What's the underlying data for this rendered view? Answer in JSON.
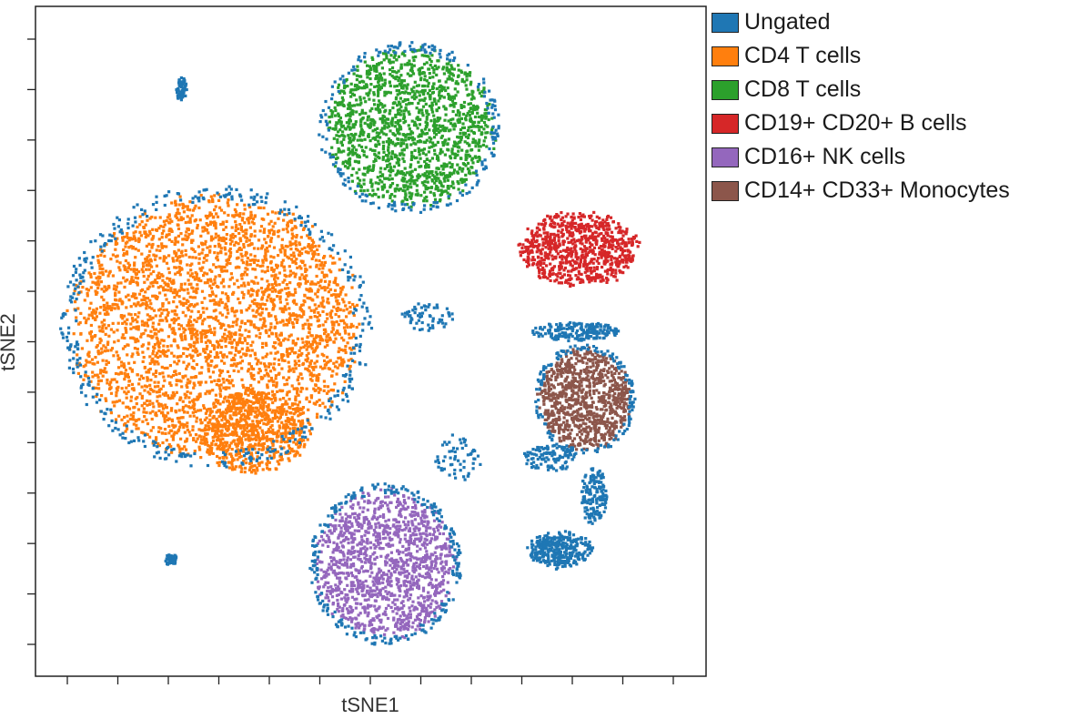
{
  "chart_data": {
    "type": "scatter",
    "xlabel": "tSNE1",
    "ylabel": "tSNE2",
    "x_ticks": 13,
    "y_ticks": 13,
    "xlim": [
      -6.9,
      6.9
    ],
    "ylim": [
      -6.9,
      6.9
    ],
    "legend": "right",
    "series": [
      {
        "name": "Ungated",
        "color": "#1f77b4"
      },
      {
        "name": "CD4 T cells",
        "color": "#ff7f0e"
      },
      {
        "name": "CD8 T cells",
        "color": "#2ca02c"
      },
      {
        "name": "CD19+ CD20+ B cells",
        "color": "#d62728"
      },
      {
        "name": "CD16+ NK cells",
        "color": "#9467bd"
      },
      {
        "name": "CD14+ CD33+ Monocytes",
        "color": "#8c564b"
      }
    ],
    "clusters": [
      {
        "series": "CD4 T cells",
        "shape": "ellipse",
        "center": [
          -3.2,
          0.3
        ],
        "radius": [
          3.1,
          2.8
        ],
        "points": 3200
      },
      {
        "series": "CD4 T cells",
        "shape": "ellipse",
        "center": [
          -2.4,
          -1.9
        ],
        "radius": [
          1.2,
          0.9
        ],
        "points": 600
      },
      {
        "series": "CD8 T cells",
        "shape": "ellipse",
        "center": [
          0.8,
          4.4
        ],
        "radius": [
          1.8,
          1.7
        ],
        "points": 1500
      },
      {
        "series": "CD19+ CD20+ B cells",
        "shape": "ellipse",
        "center": [
          4.3,
          1.9
        ],
        "radius": [
          1.3,
          0.8
        ],
        "points": 800
      },
      {
        "series": "CD14+ CD33+ Monocytes",
        "shape": "ellipse",
        "center": [
          4.4,
          -1.2
        ],
        "radius": [
          1.0,
          1.1
        ],
        "points": 900
      },
      {
        "series": "CD16+ NK cells",
        "shape": "ellipse",
        "center": [
          0.3,
          -4.6
        ],
        "radius": [
          1.5,
          1.6
        ],
        "points": 1300
      },
      {
        "series": "Ungated",
        "shape": "ellipse",
        "center": [
          3.9,
          -4.3
        ],
        "radius": [
          0.7,
          0.4
        ],
        "points": 320
      },
      {
        "series": "Ungated",
        "shape": "ellipse",
        "center": [
          4.6,
          -3.2
        ],
        "radius": [
          0.3,
          0.6
        ],
        "points": 150
      },
      {
        "series": "Ungated",
        "shape": "ellipse",
        "center": [
          3.7,
          -2.4
        ],
        "radius": [
          0.6,
          0.3
        ],
        "points": 120
      },
      {
        "series": "Ungated",
        "shape": "ellipse",
        "center": [
          4.2,
          0.2
        ],
        "radius": [
          1.0,
          0.2
        ],
        "points": 200
      },
      {
        "series": "Ungated",
        "shape": "ellipse",
        "center": [
          -3.9,
          5.2
        ],
        "radius": [
          0.12,
          0.25
        ],
        "points": 60
      },
      {
        "series": "Ungated",
        "shape": "ellipse",
        "center": [
          -4.1,
          -4.5
        ],
        "radius": [
          0.15,
          0.12
        ],
        "points": 50
      },
      {
        "series": "Ungated",
        "shape": "ring",
        "center": [
          -3.2,
          0.3
        ],
        "radius": [
          3.1,
          2.8
        ],
        "points": 400
      },
      {
        "series": "Ungated",
        "shape": "ring",
        "center": [
          0.8,
          4.4
        ],
        "radius": [
          1.8,
          1.7
        ],
        "points": 200
      },
      {
        "series": "Ungated",
        "shape": "ring",
        "center": [
          0.3,
          -4.6
        ],
        "radius": [
          1.5,
          1.6
        ],
        "points": 250
      },
      {
        "series": "Ungated",
        "shape": "ring",
        "center": [
          4.4,
          -1.2
        ],
        "radius": [
          1.0,
          1.1
        ],
        "points": 150
      },
      {
        "series": "Ungated",
        "shape": "ellipse",
        "center": [
          1.2,
          0.5
        ],
        "radius": [
          0.6,
          0.3
        ],
        "points": 60
      },
      {
        "series": "Ungated",
        "shape": "ellipse",
        "center": [
          1.8,
          -2.4
        ],
        "radius": [
          0.5,
          0.5
        ],
        "points": 60
      }
    ]
  }
}
